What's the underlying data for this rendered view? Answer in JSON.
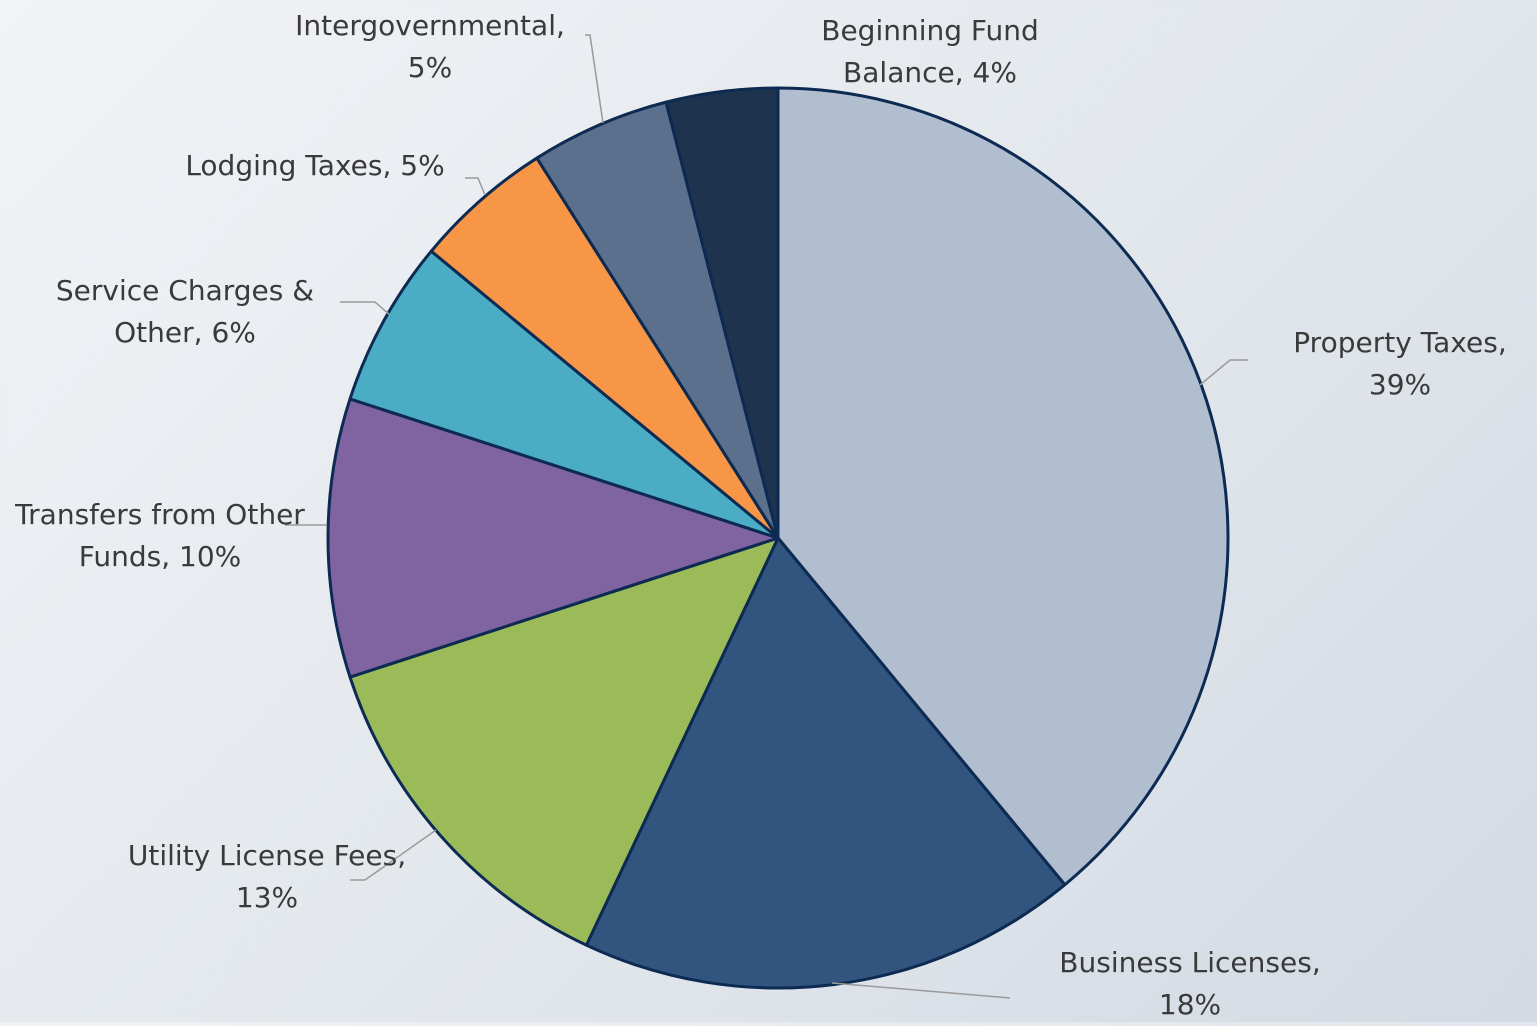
{
  "chart_data": {
    "type": "pie",
    "categories": [
      "Property Taxes",
      "Business Licenses",
      "Utility License Fees",
      "Transfers from Other Funds",
      "Service Charges & Other",
      "Lodging Taxes",
      "Intergovernmental",
      "Beginning Fund Balance"
    ],
    "values": [
      39,
      18,
      13,
      10,
      6,
      5,
      5,
      4
    ],
    "value_labels": [
      "39%",
      "18%",
      "13%",
      "10%",
      "6%",
      "5%",
      "5%",
      "4%"
    ],
    "colors": [
      "#b1becf",
      "#32557f",
      "#9bbb59",
      "#8064a2",
      "#4bacc6",
      "#f79646",
      "#5a708c",
      "#1e334d"
    ]
  }
}
